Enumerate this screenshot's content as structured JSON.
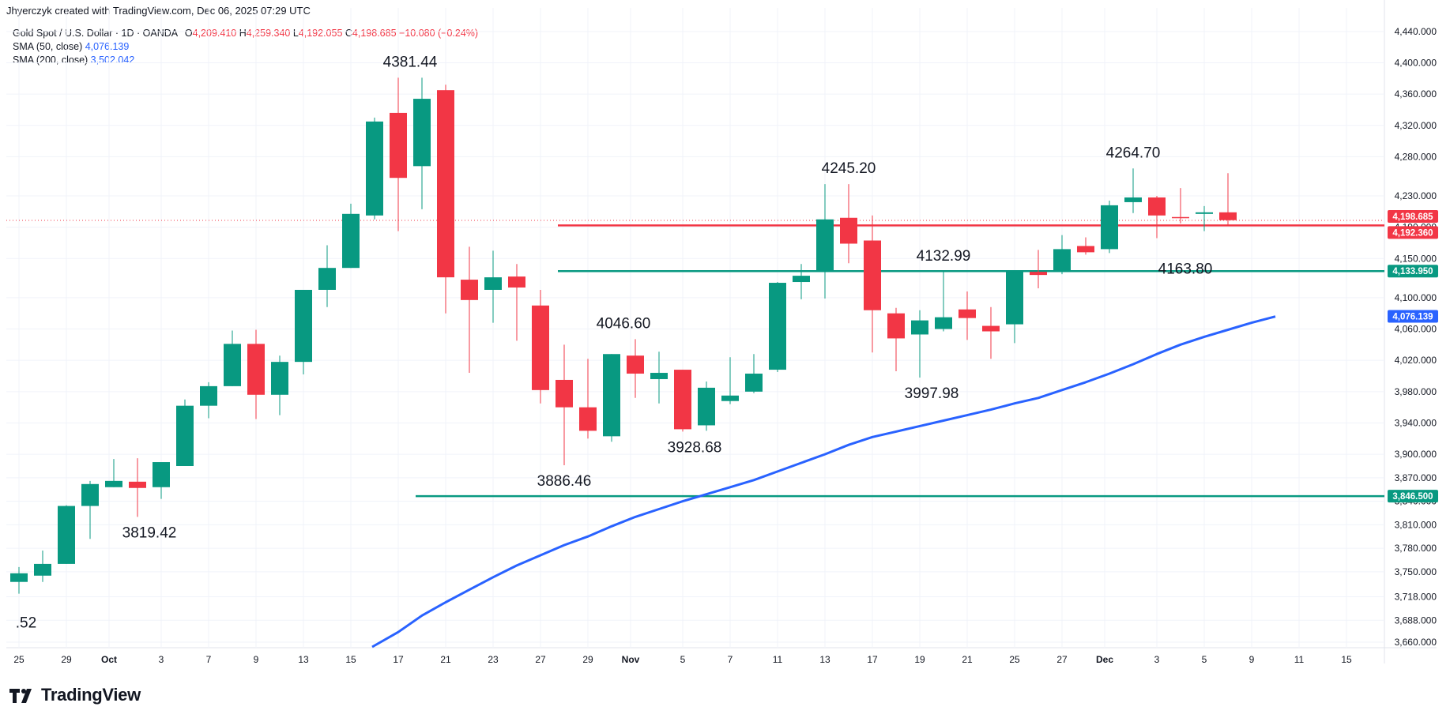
{
  "header": {
    "credit": "Jhyerczyk created with TradingView.com, Dec 06, 2025 07:29 UTC",
    "symbol": "Gold Spot / U.S. Dollar · 1D · OANDA",
    "o_label": "O",
    "o": "4,209.410",
    "h_label": "H",
    "h": "4,259.340",
    "l_label": "L",
    "l": "4,192.055",
    "c_label": "C",
    "c": "4,198.685",
    "change": "−10.080 (−0.24%)",
    "sma50_label": "SMA (50, close)",
    "sma50": "4,076.139",
    "sma200_label": "SMA (200, close)",
    "sma200": "3,502.042"
  },
  "brand": {
    "name": "TradingView",
    "logo": "tradingview-logo-icon"
  },
  "colors": {
    "up": "#089981",
    "down": "#f23645",
    "sma": "#2962ff",
    "support": "#089981",
    "resistance": "#f23645",
    "grid": "#f0f3fa",
    "text": "#131722"
  },
  "chart_data": {
    "type": "candlestick",
    "x_ticks": [
      "25",
      "29",
      "Oct",
      "3",
      "7",
      "9",
      "13",
      "15",
      "17",
      "21",
      "23",
      "27",
      "29",
      "Nov",
      "5",
      "7",
      "11",
      "13",
      "17",
      "19",
      "21",
      "25",
      "27",
      "Dec",
      "3",
      "5",
      "9",
      "11",
      "15"
    ],
    "y_ticks": [
      "4,440.000",
      "4,400.000",
      "4,360.000",
      "4,320.000",
      "4,280.000",
      "4,230.000",
      "4,190.000",
      "4,150.000",
      "4,100.000",
      "4,060.000",
      "4,020.000",
      "3,980.000",
      "3,940.000",
      "3,900.000",
      "3,870.000",
      "3,840.000",
      "3,810.000",
      "3,780.000",
      "3,750.000",
      "3,718.000",
      "3,688.000",
      "3,660.000"
    ],
    "ylim": [
      3655,
      4460
    ],
    "candles": [
      {
        "o": 3737,
        "h": 3756,
        "l": 3722,
        "c": 3748
      },
      {
        "o": 3745,
        "h": 3777,
        "l": 3737,
        "c": 3760
      },
      {
        "o": 3760,
        "h": 3835,
        "l": 3760,
        "c": 3834
      },
      {
        "o": 3834,
        "h": 3866,
        "l": 3792,
        "c": 3862
      },
      {
        "o": 3858,
        "h": 3894,
        "l": 3858,
        "c": 3866
      },
      {
        "o": 3865,
        "h": 3895,
        "l": 3820,
        "c": 3857
      },
      {
        "o": 3858,
        "h": 3888,
        "l": 3843,
        "c": 3890
      },
      {
        "o": 3885,
        "h": 3970,
        "l": 3885,
        "c": 3962
      },
      {
        "o": 3962,
        "h": 3992,
        "l": 3946,
        "c": 3987
      },
      {
        "o": 3987,
        "h": 4058,
        "l": 3987,
        "c": 4041
      },
      {
        "o": 4041,
        "h": 4059,
        "l": 3945,
        "c": 3976
      },
      {
        "o": 3976,
        "h": 4026,
        "l": 3950,
        "c": 4018
      },
      {
        "o": 4018,
        "h": 4110,
        "l": 4002,
        "c": 4110
      },
      {
        "o": 4110,
        "h": 4167,
        "l": 4088,
        "c": 4138
      },
      {
        "o": 4138,
        "h": 4220,
        "l": 4138,
        "c": 4207
      },
      {
        "o": 4205,
        "h": 4330,
        "l": 4200,
        "c": 4325
      },
      {
        "o": 4336,
        "h": 4381,
        "l": 4185,
        "c": 4253
      },
      {
        "o": 4268,
        "h": 4381,
        "l": 4213,
        "c": 4354
      },
      {
        "o": 4365,
        "h": 4372,
        "l": 4080,
        "c": 4126
      },
      {
        "o": 4123,
        "h": 4165,
        "l": 4004,
        "c": 4097
      },
      {
        "o": 4110,
        "h": 4160,
        "l": 4068,
        "c": 4126
      },
      {
        "o": 4127,
        "h": 4143,
        "l": 4045,
        "c": 4113
      },
      {
        "o": 4090,
        "h": 4110,
        "l": 3965,
        "c": 3982
      },
      {
        "o": 3995,
        "h": 4040,
        "l": 3886,
        "c": 3960
      },
      {
        "o": 3960,
        "h": 4022,
        "l": 3920,
        "c": 3930
      },
      {
        "o": 3923,
        "h": 4028,
        "l": 3916,
        "c": 4028
      },
      {
        "o": 4026,
        "h": 4047,
        "l": 3972,
        "c": 4003
      },
      {
        "o": 3996,
        "h": 4031,
        "l": 3965,
        "c": 4004
      },
      {
        "o": 4008,
        "h": 4008,
        "l": 3929,
        "c": 3932
      },
      {
        "o": 3937,
        "h": 3993,
        "l": 3930,
        "c": 3985
      },
      {
        "o": 3968,
        "h": 4024,
        "l": 3964,
        "c": 3975
      },
      {
        "o": 3980,
        "h": 4028,
        "l": 3978,
        "c": 4003
      },
      {
        "o": 4008,
        "h": 4120,
        "l": 4005,
        "c": 4119
      },
      {
        "o": 4120,
        "h": 4143,
        "l": 4098,
        "c": 4128
      },
      {
        "o": 4133,
        "h": 4245,
        "l": 4099,
        "c": 4200
      },
      {
        "o": 4202,
        "h": 4245,
        "l": 4144,
        "c": 4169
      },
      {
        "o": 4173,
        "h": 4205,
        "l": 4030,
        "c": 4084
      },
      {
        "o": 4080,
        "h": 4087,
        "l": 4006,
        "c": 4048
      },
      {
        "o": 4053,
        "h": 4084,
        "l": 3998,
        "c": 4071
      },
      {
        "o": 4060,
        "h": 4133,
        "l": 4057,
        "c": 4075
      },
      {
        "o": 4085,
        "h": 4108,
        "l": 4046,
        "c": 4074
      },
      {
        "o": 4064,
        "h": 4088,
        "l": 4022,
        "c": 4057
      },
      {
        "o": 4066,
        "h": 4133,
        "l": 4042,
        "c": 4133
      },
      {
        "o": 4133,
        "h": 4161,
        "l": 4112,
        "c": 4129
      },
      {
        "o": 4133,
        "h": 4180,
        "l": 4130,
        "c": 4162
      },
      {
        "o": 4166,
        "h": 4177,
        "l": 4155,
        "c": 4158
      },
      {
        "o": 4162,
        "h": 4224,
        "l": 4157,
        "c": 4218
      },
      {
        "o": 4222,
        "h": 4265,
        "l": 4208,
        "c": 4228
      },
      {
        "o": 4228,
        "h": 4230,
        "l": 4176,
        "c": 4205
      },
      {
        "o": 4203,
        "h": 4240,
        "l": 4195,
        "c": 4202
      },
      {
        "o": 4207,
        "h": 4217,
        "l": 4185,
        "c": 4209
      },
      {
        "o": 4209,
        "h": 4259,
        "l": 4192,
        "c": 4199
      }
    ],
    "sma50": [
      {
        "i": 14.9,
        "v": 3654
      },
      {
        "i": 16,
        "v": 3673
      },
      {
        "i": 17,
        "v": 3694
      },
      {
        "i": 18,
        "v": 3711
      },
      {
        "i": 19,
        "v": 3727
      },
      {
        "i": 20,
        "v": 3743
      },
      {
        "i": 21,
        "v": 3758
      },
      {
        "i": 22,
        "v": 3771
      },
      {
        "i": 23,
        "v": 3784
      },
      {
        "i": 24,
        "v": 3795
      },
      {
        "i": 25,
        "v": 3808
      },
      {
        "i": 26,
        "v": 3820
      },
      {
        "i": 27,
        "v": 3830
      },
      {
        "i": 28,
        "v": 3840
      },
      {
        "i": 29,
        "v": 3849
      },
      {
        "i": 30,
        "v": 3858
      },
      {
        "i": 31,
        "v": 3867
      },
      {
        "i": 32,
        "v": 3878
      },
      {
        "i": 33,
        "v": 3889
      },
      {
        "i": 34,
        "v": 3900
      },
      {
        "i": 35,
        "v": 3912
      },
      {
        "i": 36,
        "v": 3922
      },
      {
        "i": 37,
        "v": 3929
      },
      {
        "i": 38,
        "v": 3936
      },
      {
        "i": 39,
        "v": 3943
      },
      {
        "i": 40,
        "v": 3950
      },
      {
        "i": 41,
        "v": 3957
      },
      {
        "i": 42,
        "v": 3965
      },
      {
        "i": 43,
        "v": 3972
      },
      {
        "i": 44,
        "v": 3982
      },
      {
        "i": 45,
        "v": 3992
      },
      {
        "i": 46,
        "v": 4003
      },
      {
        "i": 47,
        "v": 4015
      },
      {
        "i": 48,
        "v": 4028
      },
      {
        "i": 49,
        "v": 4040
      },
      {
        "i": 50,
        "v": 4050
      },
      {
        "i": 51,
        "v": 4059
      },
      {
        "i": 52,
        "v": 4068
      },
      {
        "i": 53,
        "v": 4076
      }
    ],
    "price_lines": [
      {
        "name": "resistance",
        "value": 4192.36,
        "label": "4,192.360",
        "color": "#f23645",
        "from": 23
      },
      {
        "name": "support-upper",
        "value": 4133.95,
        "label": "4,133.950",
        "color": "#089981",
        "from": 23
      },
      {
        "name": "support-lower",
        "value": 3846.5,
        "label": "3,846.500",
        "color": "#089981",
        "from": 17
      }
    ],
    "last_price": {
      "value": 4198.685,
      "label": "4,198.685",
      "color": "#f23645"
    },
    "sma_price": {
      "value": 4076.139,
      "label": "4,076.139",
      "color": "#2962ff"
    },
    "annotations": [
      {
        "text": "4381.44",
        "i": 16.5,
        "v": 4381,
        "pos": "above"
      },
      {
        "text": "4245.20",
        "i": 35,
        "v": 4245,
        "pos": "above"
      },
      {
        "text": "4264.70",
        "i": 47,
        "v": 4265,
        "pos": "above"
      },
      {
        "text": "4132.99",
        "i": 39,
        "v": 4133,
        "pos": "above"
      },
      {
        "text": "4163.80",
        "i": 49.2,
        "v": 4157,
        "pos": "below"
      },
      {
        "text": "4046.60",
        "i": 25.5,
        "v": 4047,
        "pos": "above"
      },
      {
        "text": "3997.98",
        "i": 38.5,
        "v": 3998,
        "pos": "below"
      },
      {
        "text": "3928.68",
        "i": 28.5,
        "v": 3929,
        "pos": "below"
      },
      {
        "text": "3886.46",
        "i": 23,
        "v": 3886,
        "pos": "below"
      },
      {
        "text": "3819.42",
        "i": 5.5,
        "v": 3820,
        "pos": "below"
      },
      {
        "text": ".52",
        "i": 0.3,
        "v": 3705,
        "pos": "below"
      }
    ]
  }
}
